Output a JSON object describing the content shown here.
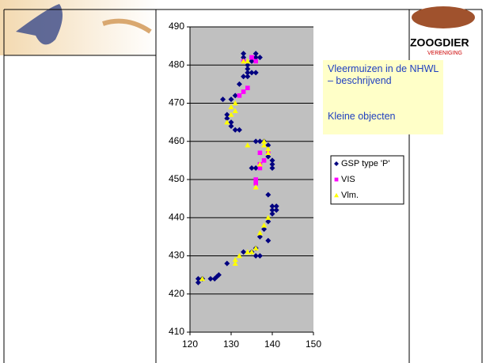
{
  "slide": {
    "heading_lines": [
      "Vleermuizen in de NHWL",
      "– beschrijvend"
    ],
    "subheading": "Kleine objecten",
    "logo": {
      "name": "ZOOGDIER",
      "subtitle": "VERENIGING"
    }
  },
  "chart_data": {
    "type": "scatter",
    "xlim": [
      120,
      150
    ],
    "xticks": [
      120,
      130,
      140,
      150
    ],
    "ylim": [
      410,
      490
    ],
    "yticks": [
      410,
      420,
      430,
      440,
      450,
      460,
      470,
      480,
      490
    ],
    "grid": "y",
    "legend": "right",
    "series": [
      {
        "name": "GSP type 'P'",
        "color": "#000080",
        "marker": "diamond",
        "x": [
          122,
          122,
          123,
          125,
          126,
          127,
          126.5,
          129,
          133,
          135,
          136,
          137,
          136,
          137,
          138,
          139,
          139,
          140,
          140,
          141,
          141,
          140,
          139,
          136,
          140,
          140,
          139,
          140,
          139,
          138,
          137,
          136,
          135,
          132,
          131,
          130,
          130,
          129,
          129,
          128,
          130,
          131,
          132,
          133,
          134,
          135,
          134,
          136,
          134,
          135,
          136,
          137,
          136,
          133,
          133,
          134
        ],
        "values": [
          423,
          424,
          424,
          424,
          424,
          425,
          424.5,
          428,
          431,
          431,
          430,
          430,
          432,
          435,
          437,
          434,
          439,
          441,
          443,
          442,
          443,
          442,
          446,
          453,
          453,
          455,
          456,
          454,
          459,
          460,
          460,
          460,
          453,
          463,
          463,
          464,
          465,
          466,
          467,
          471,
          471,
          472,
          475,
          477,
          477,
          478,
          478,
          478,
          479,
          481,
          482,
          482,
          483,
          483,
          482,
          480
        ]
      },
      {
        "name": "VIS",
        "color": "#ff00ff",
        "marker": "square",
        "x": [
          133,
          135,
          136,
          134,
          132,
          133,
          137,
          138,
          137,
          136,
          136,
          139,
          137,
          135
        ],
        "values": [
          481,
          482,
          481,
          474,
          472,
          473,
          457,
          455,
          453,
          450,
          449,
          457,
          454,
          482
        ]
      },
      {
        "name": "Vlm.",
        "color": "#ffff00",
        "marker": "triangle",
        "x": [
          123,
          131,
          131,
          132,
          134,
          135,
          136,
          137,
          138,
          139,
          136,
          137,
          138,
          139,
          139,
          138,
          134,
          130,
          130,
          129,
          131,
          131,
          133,
          134
        ],
        "values": [
          424,
          428,
          429,
          430,
          431,
          431,
          432,
          436,
          438,
          440,
          448,
          454,
          459,
          458,
          457,
          460,
          459,
          469,
          467,
          465,
          468,
          470,
          481,
          481
        ]
      }
    ]
  }
}
